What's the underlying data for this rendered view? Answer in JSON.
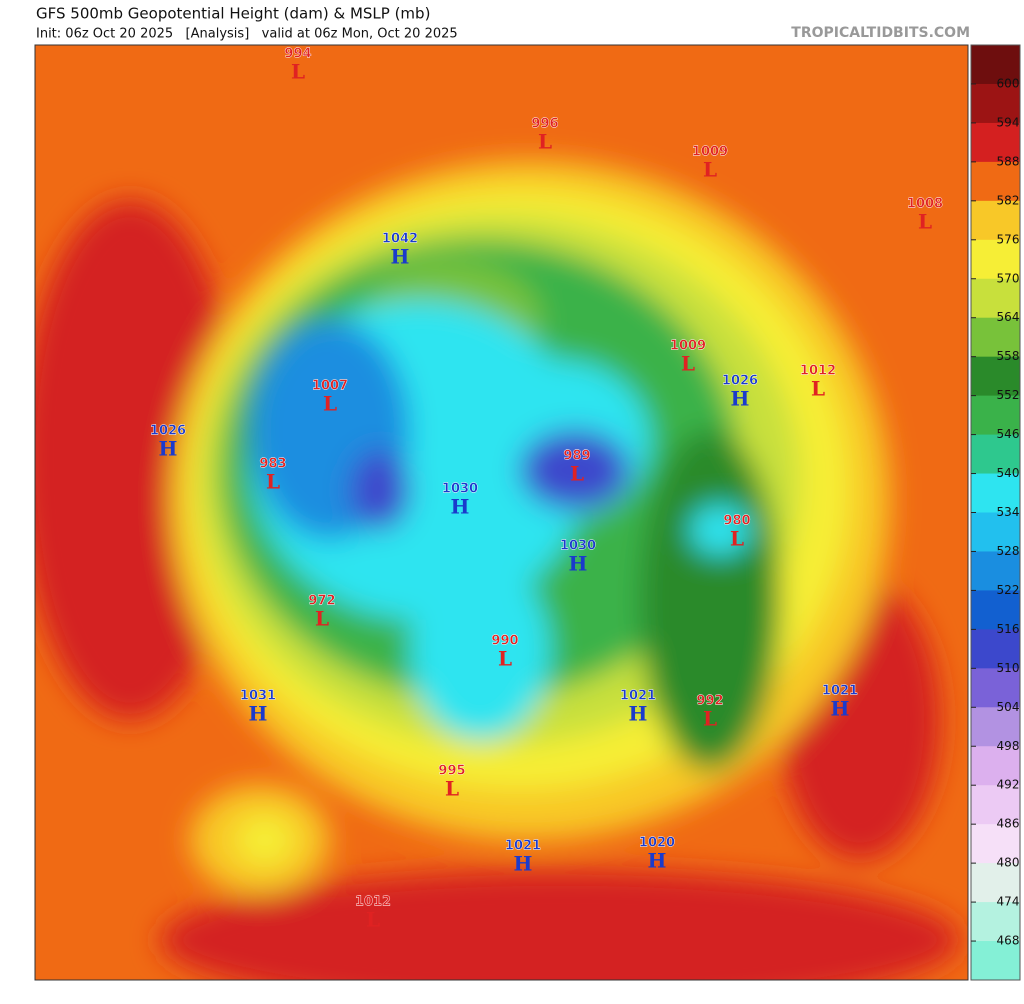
{
  "header": {
    "title": "GFS 500mb Geopotential Height (dam) & MSLP (mb)",
    "subtitle": "Init: 06z Oct 20 2025   [Analysis]   valid at 06z Mon, Oct 20 2025",
    "site": "TROPICALTIDBITS.COM"
  },
  "colorbar": {
    "labels": [
      600,
      594,
      588,
      582,
      576,
      570,
      564,
      558,
      552,
      546,
      540,
      534,
      528,
      522,
      516,
      510,
      504,
      498,
      492,
      486,
      480,
      474,
      468
    ],
    "colors": [
      "#6e0e0e",
      "#9c1414",
      "#d42020",
      "#f06a14",
      "#f8c828",
      "#f6ee36",
      "#c8e03c",
      "#78c23a",
      "#2a8a2a",
      "#3ab24a",
      "#2ec88e",
      "#2ee4f0",
      "#22c0ee",
      "#1a8ee0",
      "#1260d0",
      "#3c48cc",
      "#7a62d8",
      "#b292e2",
      "#dcb0ee",
      "#eccaf4",
      "#f6e0f8",
      "#e2f0ea",
      "#b4f2e0",
      "#84f0d6"
    ]
  },
  "centers": [
    {
      "type": "L",
      "value": 994
    },
    {
      "type": "L",
      "value": 996
    },
    {
      "type": "L",
      "value": 1009
    },
    {
      "type": "L",
      "value": 1008
    },
    {
      "type": "H",
      "value": 1042
    },
    {
      "type": "L",
      "value": 1009
    },
    {
      "type": "H",
      "value": 1026
    },
    {
      "type": "L",
      "value": 1012
    },
    {
      "type": "L",
      "value": 1007
    },
    {
      "type": "H",
      "value": 1026
    },
    {
      "type": "L",
      "value": 983
    },
    {
      "type": "L",
      "value": 989
    },
    {
      "type": "H",
      "value": 1030
    },
    {
      "type": "L",
      "value": 980
    },
    {
      "type": "H",
      "value": 1030
    },
    {
      "type": "L",
      "value": 972
    },
    {
      "type": "L",
      "value": 990
    },
    {
      "type": "H",
      "value": 1031
    },
    {
      "type": "H",
      "value": 1021
    },
    {
      "type": "L",
      "value": 992
    },
    {
      "type": "H",
      "value": 1021
    },
    {
      "type": "L",
      "value": 995
    },
    {
      "type": "H",
      "value": 1021
    },
    {
      "type": "H",
      "value": 1020
    },
    {
      "type": "L",
      "value": 1012
    }
  ]
}
